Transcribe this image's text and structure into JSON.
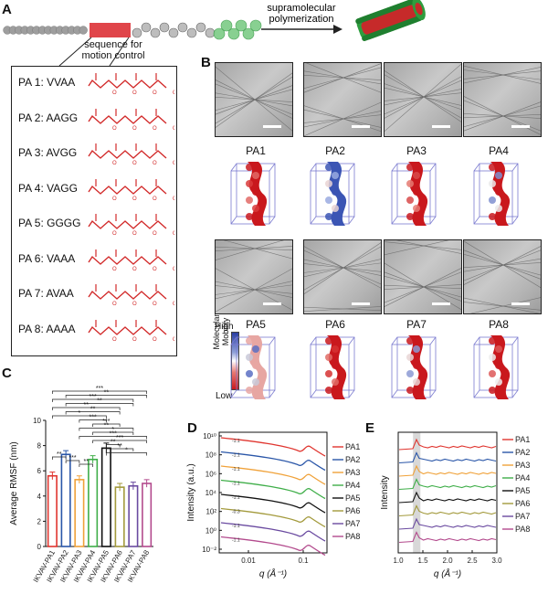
{
  "panels": {
    "A": "A",
    "B": "B",
    "C": "C",
    "D": "D",
    "E": "E"
  },
  "panel_a": {
    "arrow_label_1": "supramolecular",
    "arrow_label_2": "polymerization",
    "segment_label_1": "sequence for",
    "segment_label_2": "motion control",
    "sequences": [
      {
        "label": "PA 1: VVAA"
      },
      {
        "label": "PA 2: AAGG"
      },
      {
        "label": "PA 3: AVGG"
      },
      {
        "label": "PA 4: VAGG"
      },
      {
        "label": "PA 5: GGGG"
      },
      {
        "label": "PA 6: VAAA"
      },
      {
        "label": "PA 7: AVAA"
      },
      {
        "label": "PA 8: AAAA"
      }
    ],
    "colors": {
      "tail": "#9e9e9e",
      "segment": "#e0454a",
      "head": "#2fa84a",
      "chem": "#d22a2a"
    }
  },
  "panel_b": {
    "sim_labels": [
      "PA1",
      "PA2",
      "PA3",
      "PA4",
      "PA5",
      "PA6",
      "PA7",
      "PA8"
    ],
    "mobility_label": "Molecular Mobility",
    "mobility_high": "High",
    "mobility_low": "Low"
  },
  "chart_data": [
    {
      "type": "bar",
      "panel": "C",
      "categories": [
        "IKVAV-PA1",
        "IKVAV-PA2",
        "IKVAV-PA3",
        "IKVAV-PA4",
        "IKVAV-PA5",
        "IKVAV-PA6",
        "IKVAV-PA7",
        "IKVAV-PA8"
      ],
      "values": [
        5.6,
        7.3,
        5.3,
        6.9,
        7.8,
        4.7,
        4.8,
        5.0
      ],
      "errors": [
        0.3,
        0.3,
        0.3,
        0.3,
        0.4,
        0.3,
        0.3,
        0.3
      ],
      "colors": [
        "#e0352f",
        "#2a56a8",
        "#f0a23a",
        "#3fae49",
        "#111111",
        "#a39a3c",
        "#6a4aa0",
        "#b34a8d"
      ],
      "ylabel": "Average RMSF (nm)",
      "ylim": [
        0,
        10
      ],
      "yticks": [
        "0",
        "2",
        "4",
        "6",
        "8",
        "10"
      ],
      "significance": [
        "***",
        "**",
        "***",
        "**",
        "**",
        "**",
        "*",
        "***",
        "***",
        "**",
        "*",
        "***",
        "***",
        "**",
        "**",
        "*",
        "**",
        "***",
        "**"
      ]
    },
    {
      "type": "line",
      "panel": "D",
      "xlabel": "q (Å⁻¹)",
      "ylabel": "Intensity (a.u.)",
      "xscale": "log",
      "xticks": [
        "0.01",
        "0.1"
      ],
      "yscale": "log",
      "yticks": [
        "10¹⁰",
        "10⁸",
        "10⁶",
        "10⁴",
        "10²",
        "10⁰",
        "10⁻²"
      ],
      "slope_labels": [
        "-1.1",
        "-1.1",
        "-1.1",
        "-1.1",
        "-1.1",
        "-0.3",
        "-1.1",
        "-1.1"
      ],
      "series": [
        {
          "name": "PA1",
          "color": "#e0352f"
        },
        {
          "name": "PA2",
          "color": "#2a56a8"
        },
        {
          "name": "PA3",
          "color": "#f0a23a"
        },
        {
          "name": "PA4",
          "color": "#3fae49"
        },
        {
          "name": "PA5",
          "color": "#111111"
        },
        {
          "name": "PA6",
          "color": "#a39a3c"
        },
        {
          "name": "PA7",
          "color": "#6a4aa0"
        },
        {
          "name": "PA8",
          "color": "#b34a8d"
        }
      ]
    },
    {
      "type": "line",
      "panel": "E",
      "xlabel": "q (Å⁻¹)",
      "ylabel": "Intensity",
      "xlim": [
        1.0,
        3.0
      ],
      "xticks": [
        "1.0",
        "1.5",
        "2.0",
        "2.5",
        "3.0"
      ],
      "highlight_range": [
        1.3,
        1.45
      ],
      "series": [
        {
          "name": "PA1",
          "color": "#e0352f"
        },
        {
          "name": "PA2",
          "color": "#2a56a8"
        },
        {
          "name": "PA3",
          "color": "#f0a23a"
        },
        {
          "name": "PA4",
          "color": "#3fae49"
        },
        {
          "name": "PA5",
          "color": "#111111"
        },
        {
          "name": "PA6",
          "color": "#a39a3c"
        },
        {
          "name": "PA7",
          "color": "#6a4aa0"
        },
        {
          "name": "PA8",
          "color": "#b34a8d"
        }
      ]
    }
  ]
}
